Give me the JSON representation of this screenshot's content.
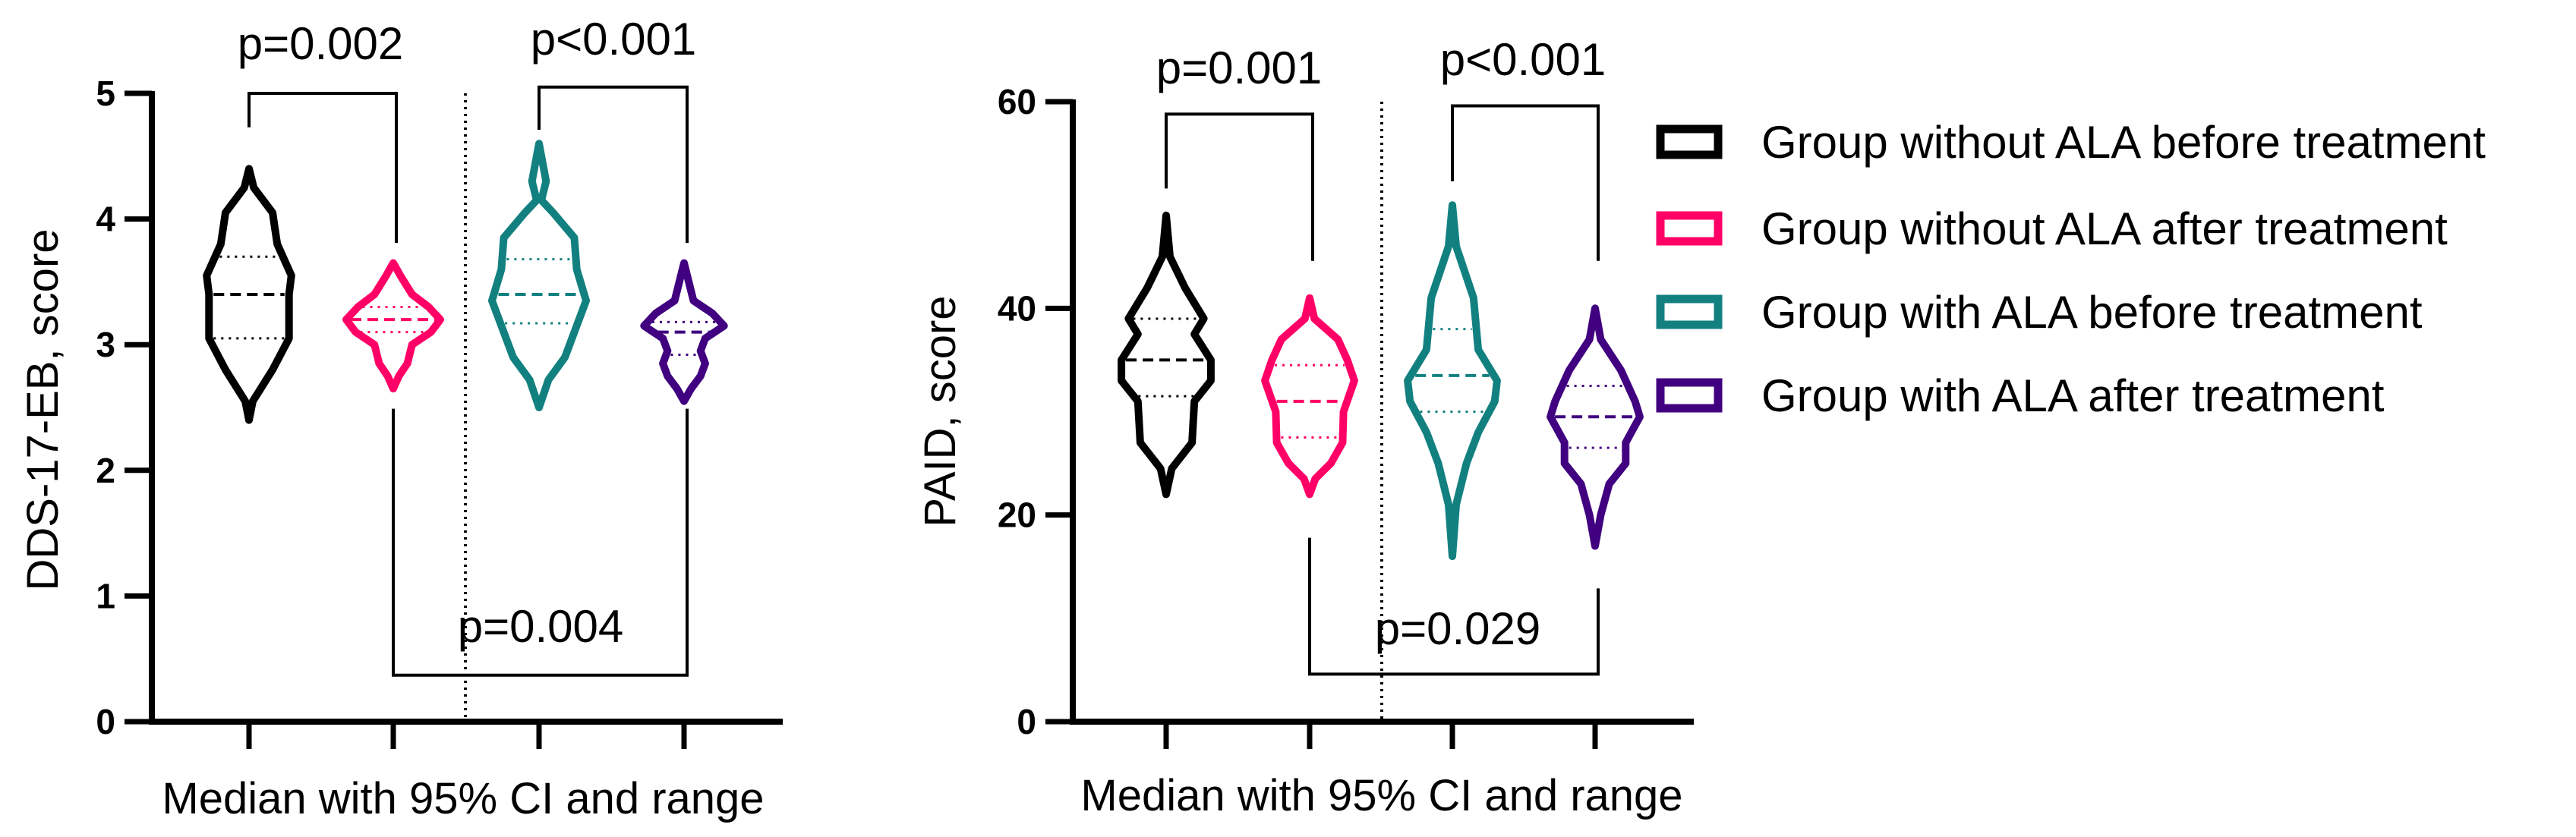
{
  "chart_data": [
    {
      "type": "violin",
      "title": "",
      "ylabel": "DDS-17-EB, score",
      "xlabel": "Median with 95% CI and range",
      "ylim": [
        0,
        5
      ],
      "yticks": [
        0,
        1,
        2,
        3,
        4,
        5
      ],
      "grid": false,
      "categories": [
        "Group without ALA before treatment",
        "Group without ALA after treatment",
        "Group with ALA before treatment",
        "Group with ALA after treatment"
      ],
      "series": [
        {
          "name": "Group without ALA before treatment",
          "color": "#000000",
          "min": 2.4,
          "max": 4.4,
          "median": 3.4,
          "ci": [
            3.05,
            3.7
          ],
          "profile": [
            [
              4.4,
              0
            ],
            [
              4.25,
              0.1
            ],
            [
              4.05,
              0.5
            ],
            [
              3.8,
              0.6
            ],
            [
              3.55,
              0.9
            ],
            [
              3.4,
              0.85
            ],
            [
              3.05,
              0.85
            ],
            [
              2.8,
              0.5
            ],
            [
              2.55,
              0.08
            ],
            [
              2.4,
              0
            ]
          ]
        },
        {
          "name": "Group without ALA after treatment",
          "color": "#ff0066",
          "min": 2.65,
          "max": 3.65,
          "median": 3.2,
          "ci": [
            3.1,
            3.3
          ],
          "profile": [
            [
              3.65,
              0
            ],
            [
              3.55,
              0.15
            ],
            [
              3.4,
              0.4
            ],
            [
              3.3,
              0.75
            ],
            [
              3.2,
              1.0
            ],
            [
              3.1,
              0.8
            ],
            [
              3.0,
              0.4
            ],
            [
              2.85,
              0.3
            ],
            [
              2.75,
              0.12
            ],
            [
              2.65,
              0
            ]
          ]
        },
        {
          "name": "Group with ALA before treatment",
          "color": "#138080",
          "min": 2.5,
          "max": 4.6,
          "median": 3.4,
          "ci": [
            3.17,
            3.68
          ],
          "profile": [
            [
              4.6,
              0
            ],
            [
              4.3,
              0.15
            ],
            [
              4.15,
              0.05
            ],
            [
              4.05,
              0.3
            ],
            [
              3.85,
              0.75
            ],
            [
              3.6,
              0.8
            ],
            [
              3.35,
              1.0
            ],
            [
              3.1,
              0.75
            ],
            [
              2.9,
              0.55
            ],
            [
              2.72,
              0.2
            ],
            [
              2.5,
              0
            ]
          ]
        },
        {
          "name": "Group with ALA after treatment",
          "color": "#400080",
          "min": 2.55,
          "max": 3.65,
          "median": 3.1,
          "ci": [
            2.92,
            3.18
          ],
          "profile": [
            [
              3.65,
              0
            ],
            [
              3.5,
              0.1
            ],
            [
              3.35,
              0.2
            ],
            [
              3.25,
              0.6
            ],
            [
              3.15,
              0.85
            ],
            [
              3.05,
              0.45
            ],
            [
              2.95,
              0.35
            ],
            [
              2.85,
              0.45
            ],
            [
              2.75,
              0.35
            ],
            [
              2.65,
              0.15
            ],
            [
              2.55,
              0
            ]
          ]
        }
      ],
      "comparisons": [
        {
          "groups": [
            0,
            1
          ],
          "label": "p=0.002",
          "bracket_y": 5.0,
          "leg_ends": [
            4.73,
            3.81
          ],
          "side": "top"
        },
        {
          "groups": [
            2,
            3
          ],
          "label": "p<0.001",
          "bracket_y": 5.05,
          "leg_ends": [
            4.71,
            3.81
          ],
          "side": "top"
        },
        {
          "groups": [
            1,
            3
          ],
          "label": "p=0.004",
          "bracket_y": 0.37,
          "leg_ends": [
            2.49,
            2.49
          ],
          "side": "bottom"
        }
      ]
    },
    {
      "type": "violin",
      "title": "",
      "ylabel": "PAID, score",
      "xlabel": "Median with 95% CI and range",
      "ylim": [
        0,
        60
      ],
      "yticks": [
        0,
        20,
        40,
        60
      ],
      "grid": false,
      "legend_position": "right",
      "categories": [
        "Group without ALA before treatment",
        "Group without ALA after treatment",
        "Group with ALA before treatment",
        "Group with ALA after treatment"
      ],
      "series": [
        {
          "name": "Group without ALA before treatment",
          "color": "#000000",
          "min": 22,
          "max": 49,
          "median": 35,
          "ci": [
            31.5,
            39
          ],
          "profile": [
            [
              49,
              0
            ],
            [
              45,
              0.08
            ],
            [
              42,
              0.4
            ],
            [
              39,
              0.8
            ],
            [
              37.5,
              0.6
            ],
            [
              35,
              0.95
            ],
            [
              33,
              0.95
            ],
            [
              31,
              0.6
            ],
            [
              27,
              0.55
            ],
            [
              24.5,
              0.12
            ],
            [
              22,
              0
            ]
          ]
        },
        {
          "name": "Group without ALA after treatment",
          "color": "#ff0066",
          "min": 22,
          "max": 41,
          "median": 31,
          "ci": [
            27.5,
            34.5
          ],
          "profile": [
            [
              41,
              0
            ],
            [
              39,
              0.1
            ],
            [
              37,
              0.6
            ],
            [
              35,
              0.8
            ],
            [
              33,
              0.95
            ],
            [
              30,
              0.72
            ],
            [
              27,
              0.7
            ],
            [
              25,
              0.45
            ],
            [
              23.5,
              0.12
            ],
            [
              22,
              0
            ]
          ]
        },
        {
          "name": "Group with ALA before treatment",
          "color": "#138080",
          "min": 16,
          "max": 50,
          "median": 33.5,
          "ci": [
            30,
            38
          ],
          "profile": [
            [
              50,
              0
            ],
            [
              46,
              0.08
            ],
            [
              41,
              0.45
            ],
            [
              36,
              0.55
            ],
            [
              33,
              0.95
            ],
            [
              31,
              0.9
            ],
            [
              28,
              0.55
            ],
            [
              25,
              0.3
            ],
            [
              21,
              0.08
            ],
            [
              16,
              0
            ]
          ]
        },
        {
          "name": "Group with ALA after treatment",
          "color": "#400080",
          "min": 17,
          "max": 40,
          "median": 29.5,
          "ci": [
            26.5,
            32.5
          ],
          "profile": [
            [
              40,
              0
            ],
            [
              37,
              0.12
            ],
            [
              34,
              0.55
            ],
            [
              31,
              0.85
            ],
            [
              29.5,
              0.95
            ],
            [
              27,
              0.65
            ],
            [
              25,
              0.65
            ],
            [
              23,
              0.3
            ],
            [
              20,
              0.12
            ],
            [
              17,
              0
            ]
          ]
        }
      ],
      "comparisons": [
        {
          "groups": [
            0,
            1
          ],
          "label": "p=0.001",
          "bracket_y": 58.8,
          "leg_ends": [
            51.6,
            44.6
          ],
          "side": "top"
        },
        {
          "groups": [
            2,
            3
          ],
          "label": "p<0.001",
          "bracket_y": 59.6,
          "leg_ends": [
            52.3,
            44.6
          ],
          "side": "top"
        },
        {
          "groups": [
            1,
            3
          ],
          "label": "p=0.029",
          "bracket_y": 4.6,
          "leg_ends": [
            17.8,
            12.9
          ],
          "side": "bottom"
        }
      ]
    }
  ]
}
